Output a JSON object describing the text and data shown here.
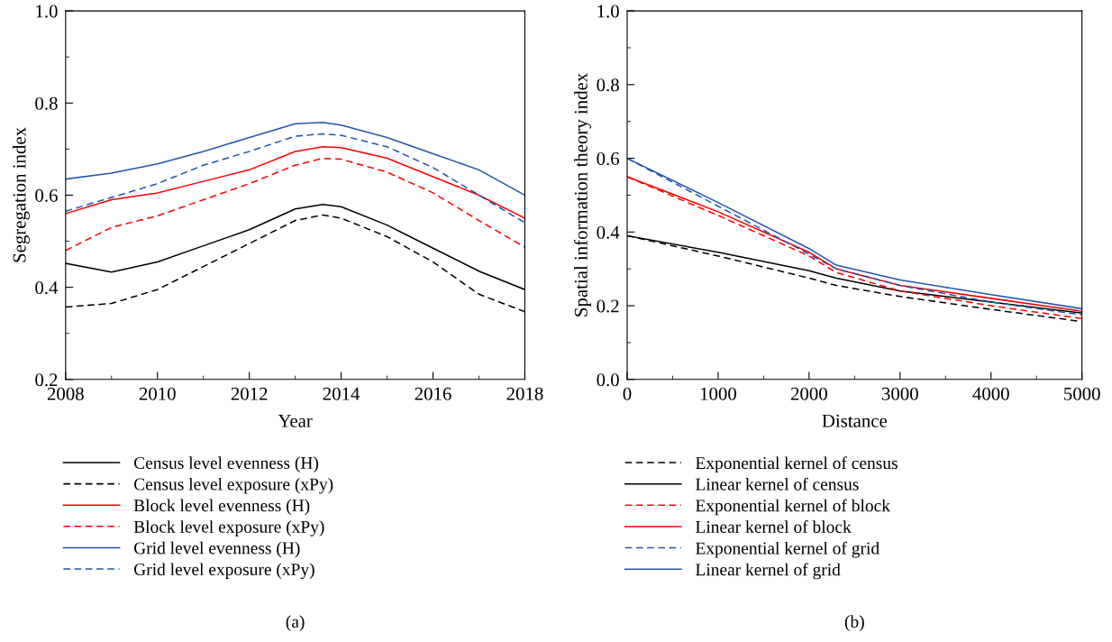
{
  "chart_data": [
    {
      "type": "line",
      "xlabel": "Year",
      "ylabel": "Segregation index",
      "xlim": [
        2008,
        2018
      ],
      "ylim": [
        0.2,
        1.0
      ],
      "xticks": [
        2008,
        2010,
        2012,
        2014,
        2016,
        2018
      ],
      "yticks": [
        {
          "value": 0.2,
          "label": "0.2"
        },
        {
          "value": 0.4,
          "label": "0.4"
        },
        {
          "value": 0.6,
          "label": "0.6"
        },
        {
          "value": 0.8,
          "label": "0.8"
        },
        {
          "value": 1.0,
          "label": "1.0"
        }
      ],
      "grid": false,
      "legend": "bottom",
      "marker": "none",
      "annotations": [
        "(a)"
      ],
      "x": [
        2008,
        2009,
        2010,
        2011,
        2012,
        2013,
        2013.6,
        2014,
        2015,
        2016,
        2017,
        2018
      ],
      "series": [
        {
          "name": "Census level evenness (H)",
          "color": "#000000",
          "line_style": "solid",
          "values": [
            0.452,
            0.433,
            0.455,
            0.49,
            0.525,
            0.57,
            0.58,
            0.575,
            0.535,
            0.485,
            0.435,
            0.395
          ]
        },
        {
          "name": "Census level exposure (xPy)",
          "color": "#000000",
          "line_style": "dashed",
          "values": [
            0.357,
            0.365,
            0.395,
            0.445,
            0.495,
            0.545,
            0.557,
            0.55,
            0.51,
            0.455,
            0.385,
            0.347
          ]
        },
        {
          "name": "Block level evenness (H)",
          "color": "#ff0000",
          "line_style": "solid",
          "values": [
            0.56,
            0.59,
            0.605,
            0.63,
            0.655,
            0.695,
            0.705,
            0.703,
            0.68,
            0.64,
            0.6,
            0.55
          ]
        },
        {
          "name": "Block level exposure (xPy)",
          "color": "#ff0000",
          "line_style": "dashed",
          "values": [
            0.48,
            0.53,
            0.555,
            0.59,
            0.625,
            0.665,
            0.68,
            0.678,
            0.65,
            0.605,
            0.545,
            0.487
          ]
        },
        {
          "name": "Grid level evenness (H)",
          "color": "#2255aa",
          "line_style": "solid",
          "values": [
            0.635,
            0.648,
            0.668,
            0.695,
            0.725,
            0.755,
            0.758,
            0.752,
            0.725,
            0.69,
            0.655,
            0.6
          ]
        },
        {
          "name": "Grid level exposure (xPy)",
          "color": "#2255aa",
          "line_style": "dashed",
          "values": [
            0.565,
            0.595,
            0.625,
            0.665,
            0.695,
            0.728,
            0.733,
            0.73,
            0.705,
            0.66,
            0.6,
            0.54
          ]
        }
      ]
    },
    {
      "type": "line",
      "xlabel": "Distance",
      "ylabel": "Spatial information theory index",
      "xlim": [
        0,
        5000
      ],
      "ylim": [
        0.0,
        1.0
      ],
      "xticks": [
        0,
        1000,
        2000,
        3000,
        4000,
        5000
      ],
      "yticks": [
        {
          "value": 0.0,
          "label": "0.0"
        },
        {
          "value": 0.2,
          "label": "0.2"
        },
        {
          "value": 0.4,
          "label": "0.4"
        },
        {
          "value": 0.6,
          "label": "0.6"
        },
        {
          "value": 0.8,
          "label": "0.8"
        },
        {
          "value": 1.0,
          "label": "1.0"
        }
      ],
      "grid": false,
      "legend": "bottom",
      "marker": "none",
      "annotations": [
        "(b)"
      ],
      "x": [
        0,
        1000,
        2000,
        2300,
        3000,
        4000,
        5000
      ],
      "series": [
        {
          "name": "Exponential kernel of census",
          "color": "#000000",
          "line_style": "dashed",
          "values": [
            0.39,
            0.335,
            0.275,
            0.255,
            0.225,
            0.19,
            0.157
          ]
        },
        {
          "name": "Linear kernel of census",
          "color": "#000000",
          "line_style": "solid",
          "values": [
            0.39,
            0.345,
            0.295,
            0.275,
            0.24,
            0.21,
            0.18
          ]
        },
        {
          "name": "Exponential kernel of block",
          "color": "#ff0000",
          "line_style": "dashed",
          "values": [
            0.55,
            0.445,
            0.335,
            0.29,
            0.24,
            0.2,
            0.165
          ]
        },
        {
          "name": "Linear kernel of block",
          "color": "#ff0000",
          "line_style": "solid",
          "values": [
            0.55,
            0.455,
            0.345,
            0.3,
            0.255,
            0.22,
            0.185
          ]
        },
        {
          "name": "Exponential kernel of grid",
          "color": "#2255aa",
          "line_style": "dashed",
          "values": [
            0.6,
            0.47,
            0.34,
            0.3,
            0.255,
            0.21,
            0.175
          ]
        },
        {
          "name": "Linear kernel of grid",
          "color": "#2255aa",
          "line_style": "solid",
          "values": [
            0.6,
            0.48,
            0.355,
            0.31,
            0.27,
            0.23,
            0.192
          ]
        }
      ]
    }
  ]
}
